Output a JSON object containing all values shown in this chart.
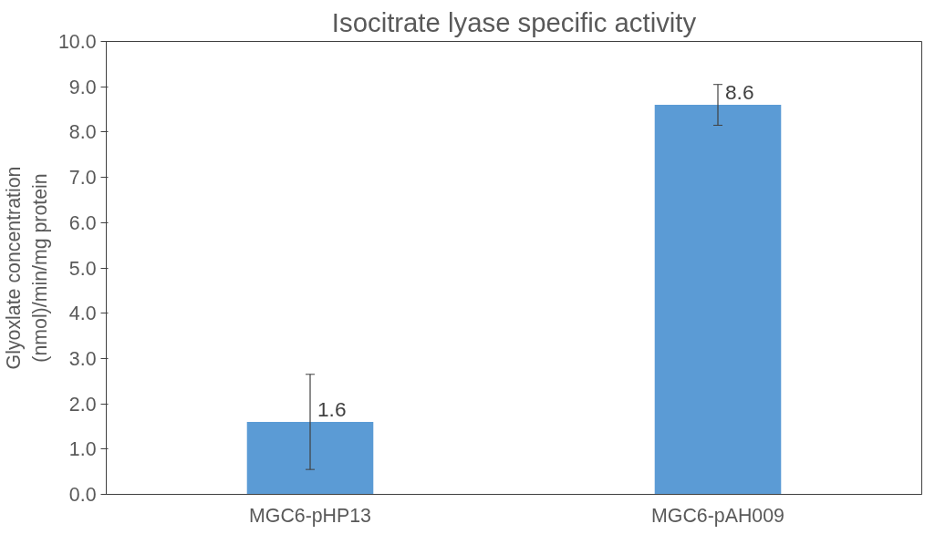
{
  "chart_data": {
    "type": "bar",
    "title": "Isocitrate lyase specific activity",
    "ylabel": "Glyoxlate concentration\n(nmol)/min/mg protein",
    "categories": [
      "MGC6-pHP13",
      "MGC6-pAH009"
    ],
    "values": [
      1.6,
      8.6
    ],
    "errors": [
      1.05,
      0.45
    ],
    "color": "#5b9bd5",
    "ylim": [
      0,
      10
    ],
    "yticks": [
      {
        "value": 0,
        "label": "0.0"
      },
      {
        "value": 1,
        "label": "1.0"
      },
      {
        "value": 2,
        "label": "2.0"
      },
      {
        "value": 3,
        "label": "3.0"
      },
      {
        "value": 4,
        "label": "4.0"
      },
      {
        "value": 5,
        "label": "5.0"
      },
      {
        "value": 6,
        "label": "6.0"
      },
      {
        "value": 7,
        "label": "7.0"
      },
      {
        "value": 8,
        "label": "8.0"
      },
      {
        "value": 9,
        "label": "9.0"
      },
      {
        "value": 10,
        "label": "10.0"
      }
    ],
    "data_labels": true,
    "grid": false
  }
}
